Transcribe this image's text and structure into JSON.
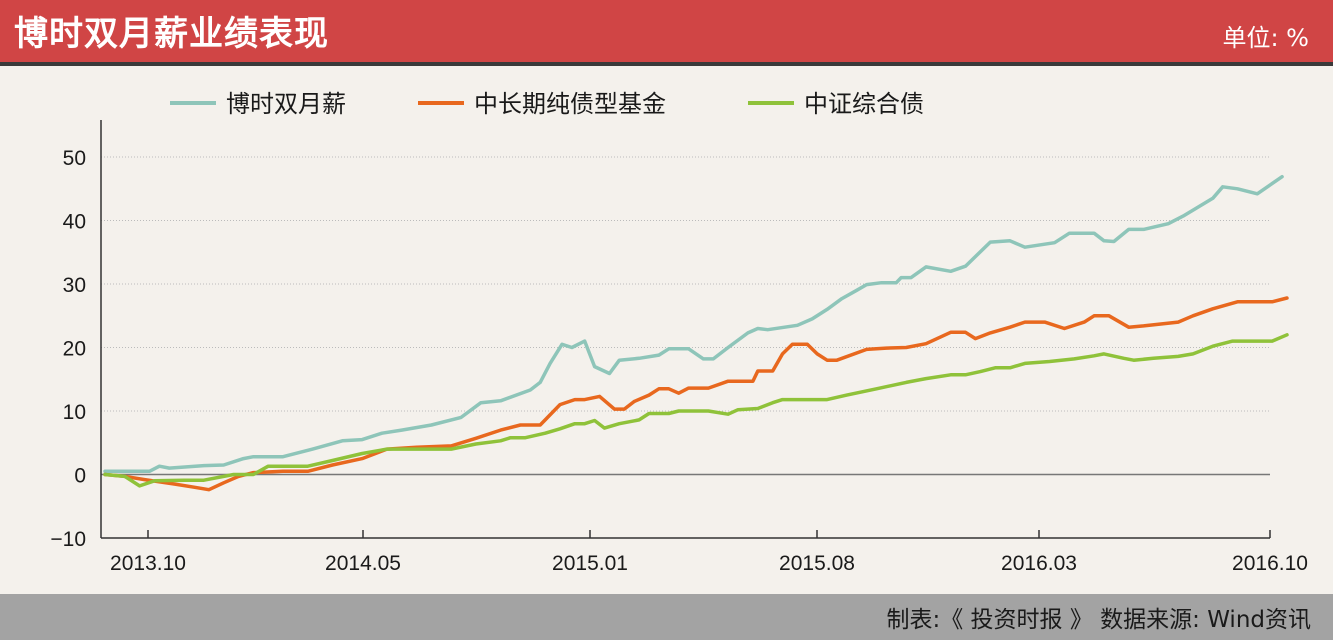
{
  "header": {
    "title": "博时双月薪业绩表现",
    "unit": "单位: %"
  },
  "footer": {
    "source": "制表:《 投资时报 》  数据来源: Wind资讯"
  },
  "chart_data": {
    "type": "line",
    "x_ticks": [
      "2013.10",
      "2014.05",
      "2015.01",
      "2015.08",
      "2016.03",
      "2016.10"
    ],
    "y_ticks": [
      50,
      40,
      30,
      20,
      10,
      0,
      -10
    ],
    "ylim": [
      -10,
      55
    ],
    "legend_position": "top",
    "grid": true,
    "series": [
      {
        "name": "博时双月薪",
        "color": "#8ec5b9",
        "points": [
          [
            0,
            0.5
          ],
          [
            0.1,
            0.5
          ],
          [
            0.3,
            0.5
          ],
          [
            0.45,
            0.5
          ],
          [
            0.55,
            1.3
          ],
          [
            0.65,
            1.0
          ],
          [
            1.0,
            1.4
          ],
          [
            1.2,
            1.5
          ],
          [
            1.4,
            2.5
          ],
          [
            1.5,
            2.8
          ],
          [
            1.8,
            2.8
          ],
          [
            2.1,
            4.0
          ],
          [
            2.4,
            5.3
          ],
          [
            2.6,
            5.5
          ],
          [
            2.8,
            6.5
          ],
          [
            3.0,
            7.0
          ],
          [
            3.3,
            7.8
          ],
          [
            3.6,
            9.0
          ],
          [
            3.8,
            11.3
          ],
          [
            4.0,
            11.6
          ],
          [
            4.3,
            13.3
          ],
          [
            4.4,
            14.5
          ],
          [
            4.5,
            17.5
          ],
          [
            4.62,
            20.5
          ],
          [
            4.72,
            20.0
          ],
          [
            4.85,
            21.0
          ],
          [
            4.95,
            17.0
          ],
          [
            5.1,
            15.9
          ],
          [
            5.2,
            18.0
          ],
          [
            5.4,
            18.3
          ],
          [
            5.6,
            18.8
          ],
          [
            5.7,
            19.8
          ],
          [
            5.9,
            19.8
          ],
          [
            6.05,
            18.2
          ],
          [
            6.15,
            18.2
          ],
          [
            6.3,
            20.0
          ],
          [
            6.5,
            22.3
          ],
          [
            6.6,
            23.0
          ],
          [
            6.7,
            22.8
          ],
          [
            7.0,
            23.5
          ],
          [
            7.15,
            24.5
          ],
          [
            7.3,
            26.0
          ],
          [
            7.45,
            27.7
          ],
          [
            7.6,
            29.0
          ],
          [
            7.7,
            29.9
          ],
          [
            7.85,
            30.2
          ],
          [
            8.0,
            30.2
          ],
          [
            8.05,
            31.0
          ],
          [
            8.15,
            31.0
          ],
          [
            8.3,
            32.7
          ],
          [
            8.55,
            32.0
          ],
          [
            8.7,
            32.8
          ],
          [
            8.95,
            36.6
          ],
          [
            9.15,
            36.8
          ],
          [
            9.3,
            35.8
          ],
          [
            9.6,
            36.5
          ],
          [
            9.75,
            38.0
          ],
          [
            10.0,
            38.0
          ],
          [
            10.1,
            36.8
          ],
          [
            10.2,
            36.7
          ],
          [
            10.35,
            38.6
          ],
          [
            10.5,
            38.6
          ],
          [
            10.75,
            39.5
          ],
          [
            10.9,
            40.7
          ],
          [
            11.2,
            43.5
          ],
          [
            11.3,
            45.3
          ],
          [
            11.45,
            45.0
          ],
          [
            11.65,
            44.2
          ],
          [
            11.9,
            46.9
          ]
        ]
      },
      {
        "name": "中长期纯债型基金",
        "color": "#e8681e",
        "points": [
          [
            0,
            0
          ],
          [
            0.2,
            -0.3
          ],
          [
            0.4,
            -0.8
          ],
          [
            0.7,
            -1.5
          ],
          [
            0.9,
            -2.0
          ],
          [
            1.05,
            -2.4
          ],
          [
            1.2,
            -1.3
          ],
          [
            1.35,
            -0.3
          ],
          [
            1.5,
            0.3
          ],
          [
            1.8,
            0.5
          ],
          [
            2.05,
            0.5
          ],
          [
            2.3,
            1.5
          ],
          [
            2.6,
            2.5
          ],
          [
            2.85,
            4.0
          ],
          [
            3.15,
            4.3
          ],
          [
            3.5,
            4.5
          ],
          [
            3.75,
            5.7
          ],
          [
            4.0,
            7.0
          ],
          [
            4.2,
            7.8
          ],
          [
            4.4,
            7.8
          ],
          [
            4.6,
            11.0
          ],
          [
            4.75,
            11.8
          ],
          [
            4.85,
            11.8
          ],
          [
            5.0,
            12.3
          ],
          [
            5.15,
            10.3
          ],
          [
            5.25,
            10.3
          ],
          [
            5.35,
            11.5
          ],
          [
            5.5,
            12.5
          ],
          [
            5.6,
            13.5
          ],
          [
            5.7,
            13.5
          ],
          [
            5.8,
            12.8
          ],
          [
            5.9,
            13.6
          ],
          [
            6.1,
            13.6
          ],
          [
            6.3,
            14.7
          ],
          [
            6.55,
            14.7
          ],
          [
            6.6,
            16.3
          ],
          [
            6.75,
            16.3
          ],
          [
            6.85,
            19.0
          ],
          [
            6.95,
            20.5
          ],
          [
            7.1,
            20.5
          ],
          [
            7.2,
            19.0
          ],
          [
            7.3,
            18.0
          ],
          [
            7.4,
            18.0
          ],
          [
            7.7,
            19.7
          ],
          [
            7.9,
            19.9
          ],
          [
            8.1,
            20.0
          ],
          [
            8.3,
            20.6
          ],
          [
            8.55,
            22.4
          ],
          [
            8.7,
            22.4
          ],
          [
            8.8,
            21.4
          ],
          [
            8.95,
            22.3
          ],
          [
            9.15,
            23.2
          ],
          [
            9.3,
            24.0
          ],
          [
            9.5,
            24.0
          ],
          [
            9.7,
            23.0
          ],
          [
            9.9,
            24.0
          ],
          [
            10.0,
            25.0
          ],
          [
            10.15,
            25.0
          ],
          [
            10.35,
            23.2
          ],
          [
            10.5,
            23.4
          ],
          [
            10.85,
            24.0
          ],
          [
            11.0,
            25.0
          ],
          [
            11.2,
            26.1
          ],
          [
            11.45,
            27.2
          ],
          [
            11.8,
            27.2
          ],
          [
            11.95,
            27.8
          ]
        ]
      },
      {
        "name": "中证综合债",
        "color": "#8fc23a",
        "points": [
          [
            0,
            0
          ],
          [
            0.2,
            -0.3
          ],
          [
            0.35,
            -1.8
          ],
          [
            0.5,
            -1.0
          ],
          [
            0.8,
            -0.9
          ],
          [
            1.0,
            -0.9
          ],
          [
            1.3,
            0
          ],
          [
            1.5,
            0
          ],
          [
            1.65,
            1.3
          ],
          [
            1.8,
            1.3
          ],
          [
            2.05,
            1.3
          ],
          [
            2.3,
            2.2
          ],
          [
            2.6,
            3.3
          ],
          [
            2.85,
            4.0
          ],
          [
            3.1,
            4.0
          ],
          [
            3.5,
            4.0
          ],
          [
            3.75,
            4.8
          ],
          [
            4.0,
            5.3
          ],
          [
            4.1,
            5.8
          ],
          [
            4.25,
            5.8
          ],
          [
            4.45,
            6.5
          ],
          [
            4.6,
            7.2
          ],
          [
            4.75,
            8.0
          ],
          [
            4.85,
            8.0
          ],
          [
            4.95,
            8.5
          ],
          [
            5.05,
            7.3
          ],
          [
            5.2,
            8.0
          ],
          [
            5.4,
            8.6
          ],
          [
            5.5,
            9.6
          ],
          [
            5.7,
            9.6
          ],
          [
            5.8,
            10.0
          ],
          [
            6.1,
            10.0
          ],
          [
            6.3,
            9.5
          ],
          [
            6.4,
            10.2
          ],
          [
            6.6,
            10.4
          ],
          [
            6.75,
            11.3
          ],
          [
            6.85,
            11.8
          ],
          [
            7.1,
            11.8
          ],
          [
            7.3,
            11.8
          ],
          [
            7.5,
            12.5
          ],
          [
            7.8,
            13.5
          ],
          [
            8.1,
            14.5
          ],
          [
            8.3,
            15.1
          ],
          [
            8.55,
            15.7
          ],
          [
            8.7,
            15.7
          ],
          [
            8.85,
            16.2
          ],
          [
            9.0,
            16.8
          ],
          [
            9.15,
            16.8
          ],
          [
            9.3,
            17.5
          ],
          [
            9.55,
            17.8
          ],
          [
            9.8,
            18.2
          ],
          [
            10.0,
            18.7
          ],
          [
            10.1,
            19.0
          ],
          [
            10.3,
            18.3
          ],
          [
            10.4,
            18.0
          ],
          [
            10.6,
            18.3
          ],
          [
            10.85,
            18.6
          ],
          [
            11.0,
            19.0
          ],
          [
            11.2,
            20.2
          ],
          [
            11.4,
            21.0
          ],
          [
            11.8,
            21.0
          ],
          [
            11.95,
            22.0
          ]
        ]
      }
    ]
  }
}
